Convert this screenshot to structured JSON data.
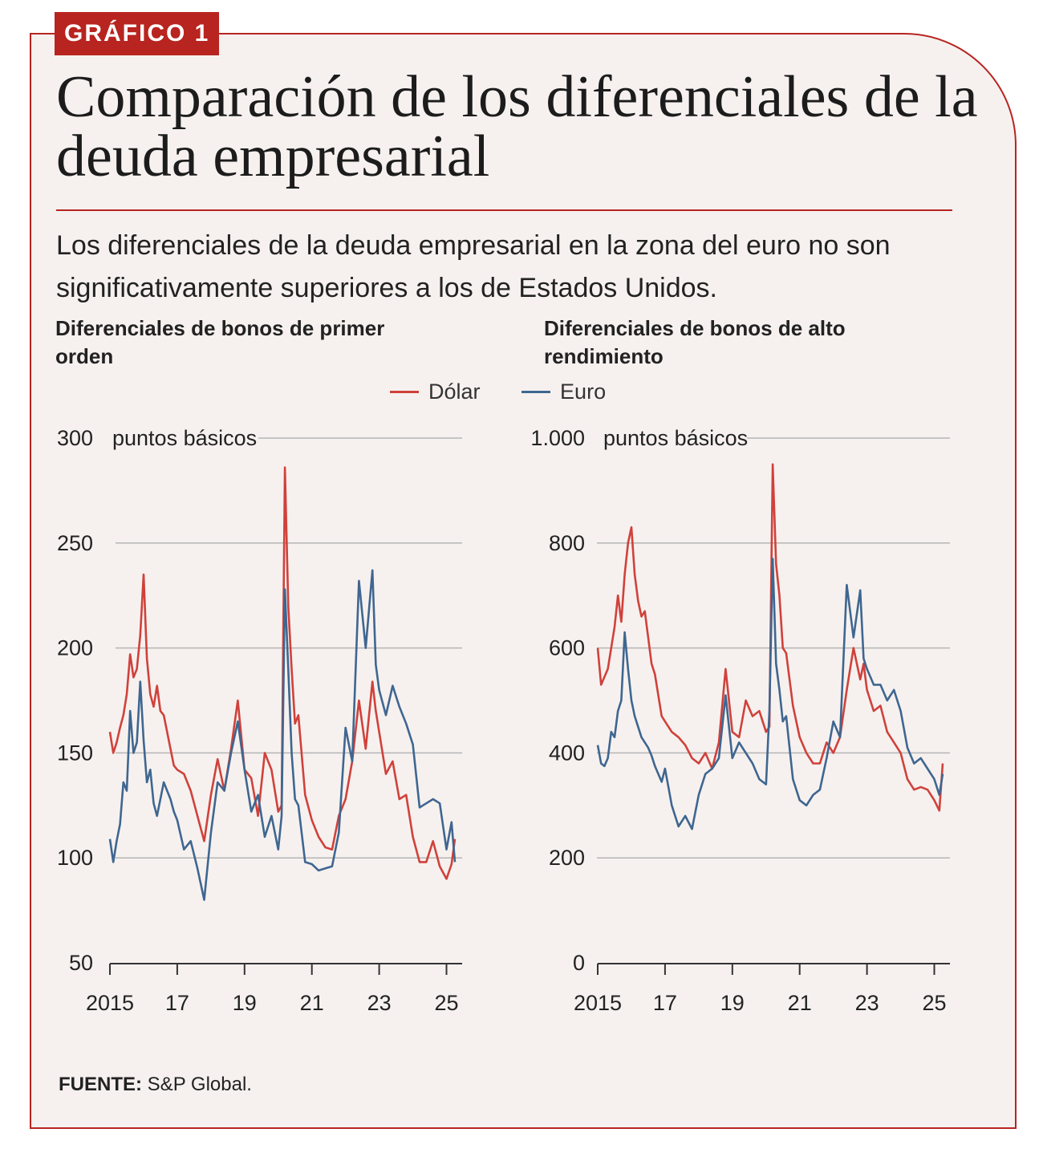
{
  "header": {
    "tag": "GRÁFICO 1",
    "title": "Comparación de los diferenciales de la deuda empresarial",
    "subtitle": "Los diferenciales de la deuda empresarial en la zona del euro no son significativamente superiores a los de Estados Unidos."
  },
  "legend": {
    "items": [
      {
        "label": "Dólar",
        "color": "#d0413b"
      },
      {
        "label": "Euro",
        "color": "#3f6690"
      }
    ]
  },
  "source": {
    "label": "FUENTE:",
    "text": "S&P Global."
  },
  "colors": {
    "accent": "#b8241f",
    "dollar": "#d0413b",
    "euro": "#3f6690",
    "grid": "#b5b5b5",
    "background": "#f6f1ef"
  },
  "chart_data": [
    {
      "type": "line",
      "title": "Diferenciales de bonos de primer orden",
      "ylabel": "puntos básicos",
      "ylim": [
        50,
        300
      ],
      "yticks": [
        50,
        100,
        150,
        200,
        250,
        300
      ],
      "ytick_labels": [
        "50",
        "100",
        "150",
        "200",
        "250",
        "300"
      ],
      "xlim": [
        2015.0,
        2025.25
      ],
      "xticks": [
        2015,
        2017,
        2019,
        2021,
        2023,
        2025
      ],
      "xtick_labels": [
        "2015",
        "17",
        "19",
        "21",
        "23",
        "25"
      ],
      "grid": true,
      "series": [
        {
          "name": "Dólar",
          "x": [
            2015.0,
            2015.1,
            2015.2,
            2015.3,
            2015.4,
            2015.5,
            2015.6,
            2015.7,
            2015.8,
            2015.9,
            2016.0,
            2016.1,
            2016.2,
            2016.3,
            2016.4,
            2016.5,
            2016.6,
            2016.7,
            2016.8,
            2016.9,
            2017.0,
            2017.2,
            2017.4,
            2017.6,
            2017.8,
            2018.0,
            2018.2,
            2018.4,
            2018.6,
            2018.8,
            2019.0,
            2019.2,
            2019.4,
            2019.6,
            2019.8,
            2020.0,
            2020.1,
            2020.2,
            2020.3,
            2020.4,
            2020.5,
            2020.6,
            2020.8,
            2021.0,
            2021.2,
            2021.4,
            2021.6,
            2021.8,
            2022.0,
            2022.2,
            2022.4,
            2022.6,
            2022.8,
            2022.9,
            2023.0,
            2023.2,
            2023.4,
            2023.6,
            2023.8,
            2024.0,
            2024.2,
            2024.4,
            2024.6,
            2024.8,
            2025.0,
            2025.15,
            2025.25
          ],
          "values": [
            160,
            150,
            155,
            162,
            168,
            178,
            197,
            186,
            190,
            206,
            235,
            195,
            178,
            172,
            182,
            170,
            168,
            160,
            152,
            144,
            142,
            140,
            132,
            120,
            108,
            130,
            147,
            132,
            152,
            175,
            142,
            138,
            120,
            150,
            142,
            122,
            125,
            286,
            220,
            190,
            164,
            168,
            130,
            118,
            110,
            105,
            104,
            120,
            128,
            146,
            175,
            152,
            184,
            170,
            160,
            140,
            146,
            128,
            130,
            110,
            98,
            98,
            108,
            96,
            90,
            97,
            109
          ]
        },
        {
          "name": "Euro",
          "x": [
            2015.0,
            2015.1,
            2015.2,
            2015.3,
            2015.4,
            2015.5,
            2015.6,
            2015.7,
            2015.8,
            2015.9,
            2016.0,
            2016.1,
            2016.2,
            2016.3,
            2016.4,
            2016.5,
            2016.6,
            2016.7,
            2016.8,
            2016.9,
            2017.0,
            2017.2,
            2017.4,
            2017.6,
            2017.8,
            2018.0,
            2018.2,
            2018.4,
            2018.6,
            2018.8,
            2019.0,
            2019.2,
            2019.4,
            2019.6,
            2019.8,
            2020.0,
            2020.1,
            2020.2,
            2020.3,
            2020.4,
            2020.5,
            2020.6,
            2020.8,
            2021.0,
            2021.2,
            2021.4,
            2021.6,
            2021.8,
            2022.0,
            2022.2,
            2022.4,
            2022.6,
            2022.8,
            2022.9,
            2023.0,
            2023.2,
            2023.4,
            2023.6,
            2023.8,
            2024.0,
            2024.2,
            2024.4,
            2024.6,
            2024.8,
            2025.0,
            2025.15,
            2025.25
          ],
          "values": [
            109,
            98,
            108,
            116,
            136,
            132,
            170,
            150,
            155,
            184,
            156,
            136,
            142,
            126,
            120,
            128,
            136,
            132,
            128,
            122,
            118,
            104,
            108,
            95,
            80,
            112,
            136,
            132,
            150,
            165,
            142,
            122,
            130,
            110,
            120,
            104,
            120,
            228,
            190,
            150,
            128,
            125,
            98,
            97,
            94,
            95,
            96,
            112,
            162,
            146,
            232,
            200,
            237,
            192,
            180,
            168,
            182,
            172,
            164,
            154,
            124,
            126,
            128,
            126,
            104,
            117,
            98
          ]
        }
      ]
    },
    {
      "type": "line",
      "title": "Diferenciales de bonos de alto rendimiento",
      "ylabel": "puntos básicos",
      "ylim": [
        0,
        1000
      ],
      "yticks": [
        0,
        200,
        400,
        600,
        800,
        1000
      ],
      "ytick_labels": [
        "0",
        "200",
        "400",
        "600",
        "800",
        "1.000"
      ],
      "xlim": [
        2015.0,
        2025.25
      ],
      "xticks": [
        2015,
        2017,
        2019,
        2021,
        2023,
        2025
      ],
      "xtick_labels": [
        "2015",
        "17",
        "19",
        "21",
        "23",
        "25"
      ],
      "grid": true,
      "series": [
        {
          "name": "Dólar",
          "x": [
            2015.0,
            2015.1,
            2015.2,
            2015.3,
            2015.4,
            2015.5,
            2015.6,
            2015.7,
            2015.8,
            2015.9,
            2016.0,
            2016.1,
            2016.2,
            2016.3,
            2016.4,
            2016.5,
            2016.6,
            2016.7,
            2016.8,
            2016.9,
            2017.0,
            2017.2,
            2017.4,
            2017.6,
            2017.8,
            2018.0,
            2018.2,
            2018.4,
            2018.6,
            2018.8,
            2019.0,
            2019.2,
            2019.4,
            2019.6,
            2019.8,
            2020.0,
            2020.1,
            2020.2,
            2020.3,
            2020.4,
            2020.5,
            2020.6,
            2020.8,
            2021.0,
            2021.2,
            2021.4,
            2021.6,
            2021.8,
            2022.0,
            2022.2,
            2022.4,
            2022.6,
            2022.8,
            2022.9,
            2023.0,
            2023.2,
            2023.4,
            2023.6,
            2023.8,
            2024.0,
            2024.2,
            2024.4,
            2024.6,
            2024.8,
            2025.0,
            2025.15,
            2025.25
          ],
          "values": [
            600,
            530,
            545,
            560,
            600,
            640,
            700,
            650,
            740,
            800,
            830,
            740,
            690,
            660,
            670,
            620,
            570,
            550,
            510,
            470,
            460,
            440,
            430,
            415,
            390,
            380,
            400,
            370,
            420,
            560,
            440,
            430,
            500,
            470,
            480,
            440,
            450,
            950,
            760,
            700,
            600,
            590,
            490,
            430,
            400,
            380,
            380,
            420,
            400,
            430,
            520,
            600,
            540,
            570,
            520,
            480,
            490,
            440,
            420,
            400,
            350,
            330,
            335,
            330,
            310,
            290,
            380
          ]
        },
        {
          "name": "Euro",
          "x": [
            2015.0,
            2015.1,
            2015.2,
            2015.3,
            2015.4,
            2015.5,
            2015.6,
            2015.7,
            2015.8,
            2015.9,
            2016.0,
            2016.1,
            2016.2,
            2016.3,
            2016.4,
            2016.5,
            2016.6,
            2016.7,
            2016.8,
            2016.9,
            2017.0,
            2017.2,
            2017.4,
            2017.6,
            2017.8,
            2018.0,
            2018.2,
            2018.4,
            2018.6,
            2018.8,
            2019.0,
            2019.2,
            2019.4,
            2019.6,
            2019.8,
            2020.0,
            2020.1,
            2020.2,
            2020.3,
            2020.4,
            2020.5,
            2020.6,
            2020.8,
            2021.0,
            2021.2,
            2021.4,
            2021.6,
            2021.8,
            2022.0,
            2022.2,
            2022.4,
            2022.6,
            2022.8,
            2022.9,
            2023.0,
            2023.2,
            2023.4,
            2023.6,
            2023.8,
            2024.0,
            2024.2,
            2024.4,
            2024.6,
            2024.8,
            2025.0,
            2025.15,
            2025.25
          ],
          "values": [
            415,
            380,
            375,
            390,
            440,
            430,
            480,
            500,
            630,
            560,
            500,
            470,
            450,
            430,
            420,
            410,
            395,
            375,
            360,
            345,
            370,
            300,
            260,
            280,
            255,
            320,
            360,
            370,
            390,
            510,
            390,
            420,
            400,
            380,
            350,
            340,
            480,
            770,
            570,
            520,
            460,
            470,
            350,
            310,
            300,
            320,
            330,
            390,
            460,
            430,
            720,
            620,
            710,
            580,
            560,
            530,
            530,
            500,
            520,
            480,
            410,
            380,
            390,
            370,
            350,
            320,
            360
          ]
        }
      ]
    }
  ]
}
